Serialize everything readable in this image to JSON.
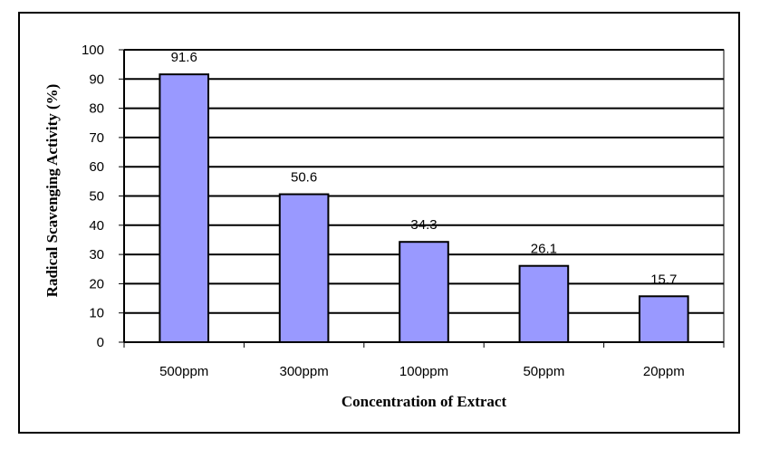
{
  "chart_data": {
    "type": "bar",
    "categories": [
      "500ppm",
      "300ppm",
      "100ppm",
      "50ppm",
      "20ppm"
    ],
    "values": [
      91.6,
      50.6,
      34.3,
      26.1,
      15.7
    ],
    "data_labels": [
      "91.6",
      "50.6",
      "34.3",
      "26.1",
      "15.7"
    ],
    "title": "",
    "xlabel": "Concentration of Extract",
    "ylabel": "Radical Scavenging Activity (%)",
    "ylim": [
      0,
      100
    ],
    "yticks": [
      0,
      10,
      20,
      30,
      40,
      50,
      60,
      70,
      80,
      90,
      100
    ],
    "grid": true,
    "legend": "none",
    "colors": {
      "bar_fill": "#9999ff",
      "bar_stroke": "#000000",
      "grid": "#000000",
      "plot_bg": "#ffffff"
    }
  }
}
